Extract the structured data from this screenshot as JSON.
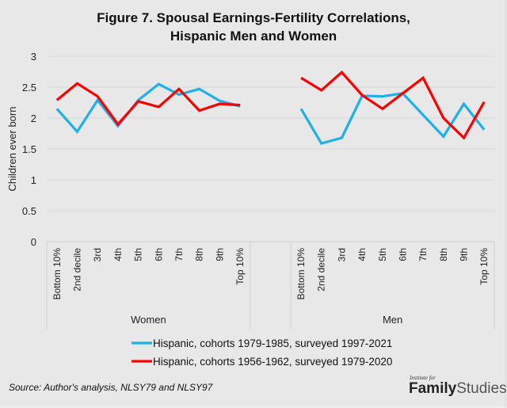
{
  "title_line1": "Figure 7. Spousal Earnings-Fertility Correlations,",
  "title_line2": "Hispanic Men and Women",
  "source": "Source: Author's analysis, NLSY79 and NLSY97",
  "logo": {
    "small": "Institute for",
    "bold": "Family",
    "light": "Studies"
  },
  "chart_data": {
    "type": "line",
    "title": "Figure 7. Spousal Earnings-Fertility Correlations, Hispanic Men and Women",
    "xlabel": "",
    "ylabel": "Children ever born",
    "ylim": [
      0,
      3
    ],
    "yticks": [
      0,
      0.5,
      1,
      1.5,
      2,
      2.5,
      3
    ],
    "ytick_labels": [
      "0",
      "0.5",
      "1",
      "1.5",
      "2",
      "2.5",
      "3"
    ],
    "grid": true,
    "legend_position": "bottom",
    "groups": [
      "Women",
      "Men"
    ],
    "categories": [
      "Bottom 10%",
      "2nd decile",
      "3rd",
      "4th",
      "5th",
      "6th",
      "7th",
      "8th",
      "9th",
      "Top 10%"
    ],
    "series": [
      {
        "name": "Hispanic, cohorts 1979-1985, surveyed 1997-2021",
        "color": "#1fb0ea",
        "values": {
          "Women": [
            2.15,
            1.78,
            2.29,
            1.87,
            2.29,
            2.55,
            2.38,
            2.47,
            2.28,
            2.19
          ],
          "Men": [
            2.15,
            1.59,
            1.68,
            2.36,
            2.35,
            2.4,
            2.05,
            1.7,
            2.23,
            1.81
          ]
        }
      },
      {
        "name": "Hispanic, cohorts 1956-1962, surveyed 1979-2020",
        "color": "#ff0000",
        "values": {
          "Women": [
            2.29,
            2.56,
            2.35,
            1.9,
            2.27,
            2.18,
            2.47,
            2.12,
            2.23,
            2.21
          ],
          "Men": [
            2.65,
            2.45,
            2.74,
            2.37,
            2.15,
            2.4,
            2.65,
            2.0,
            1.68,
            2.26
          ]
        }
      }
    ]
  }
}
